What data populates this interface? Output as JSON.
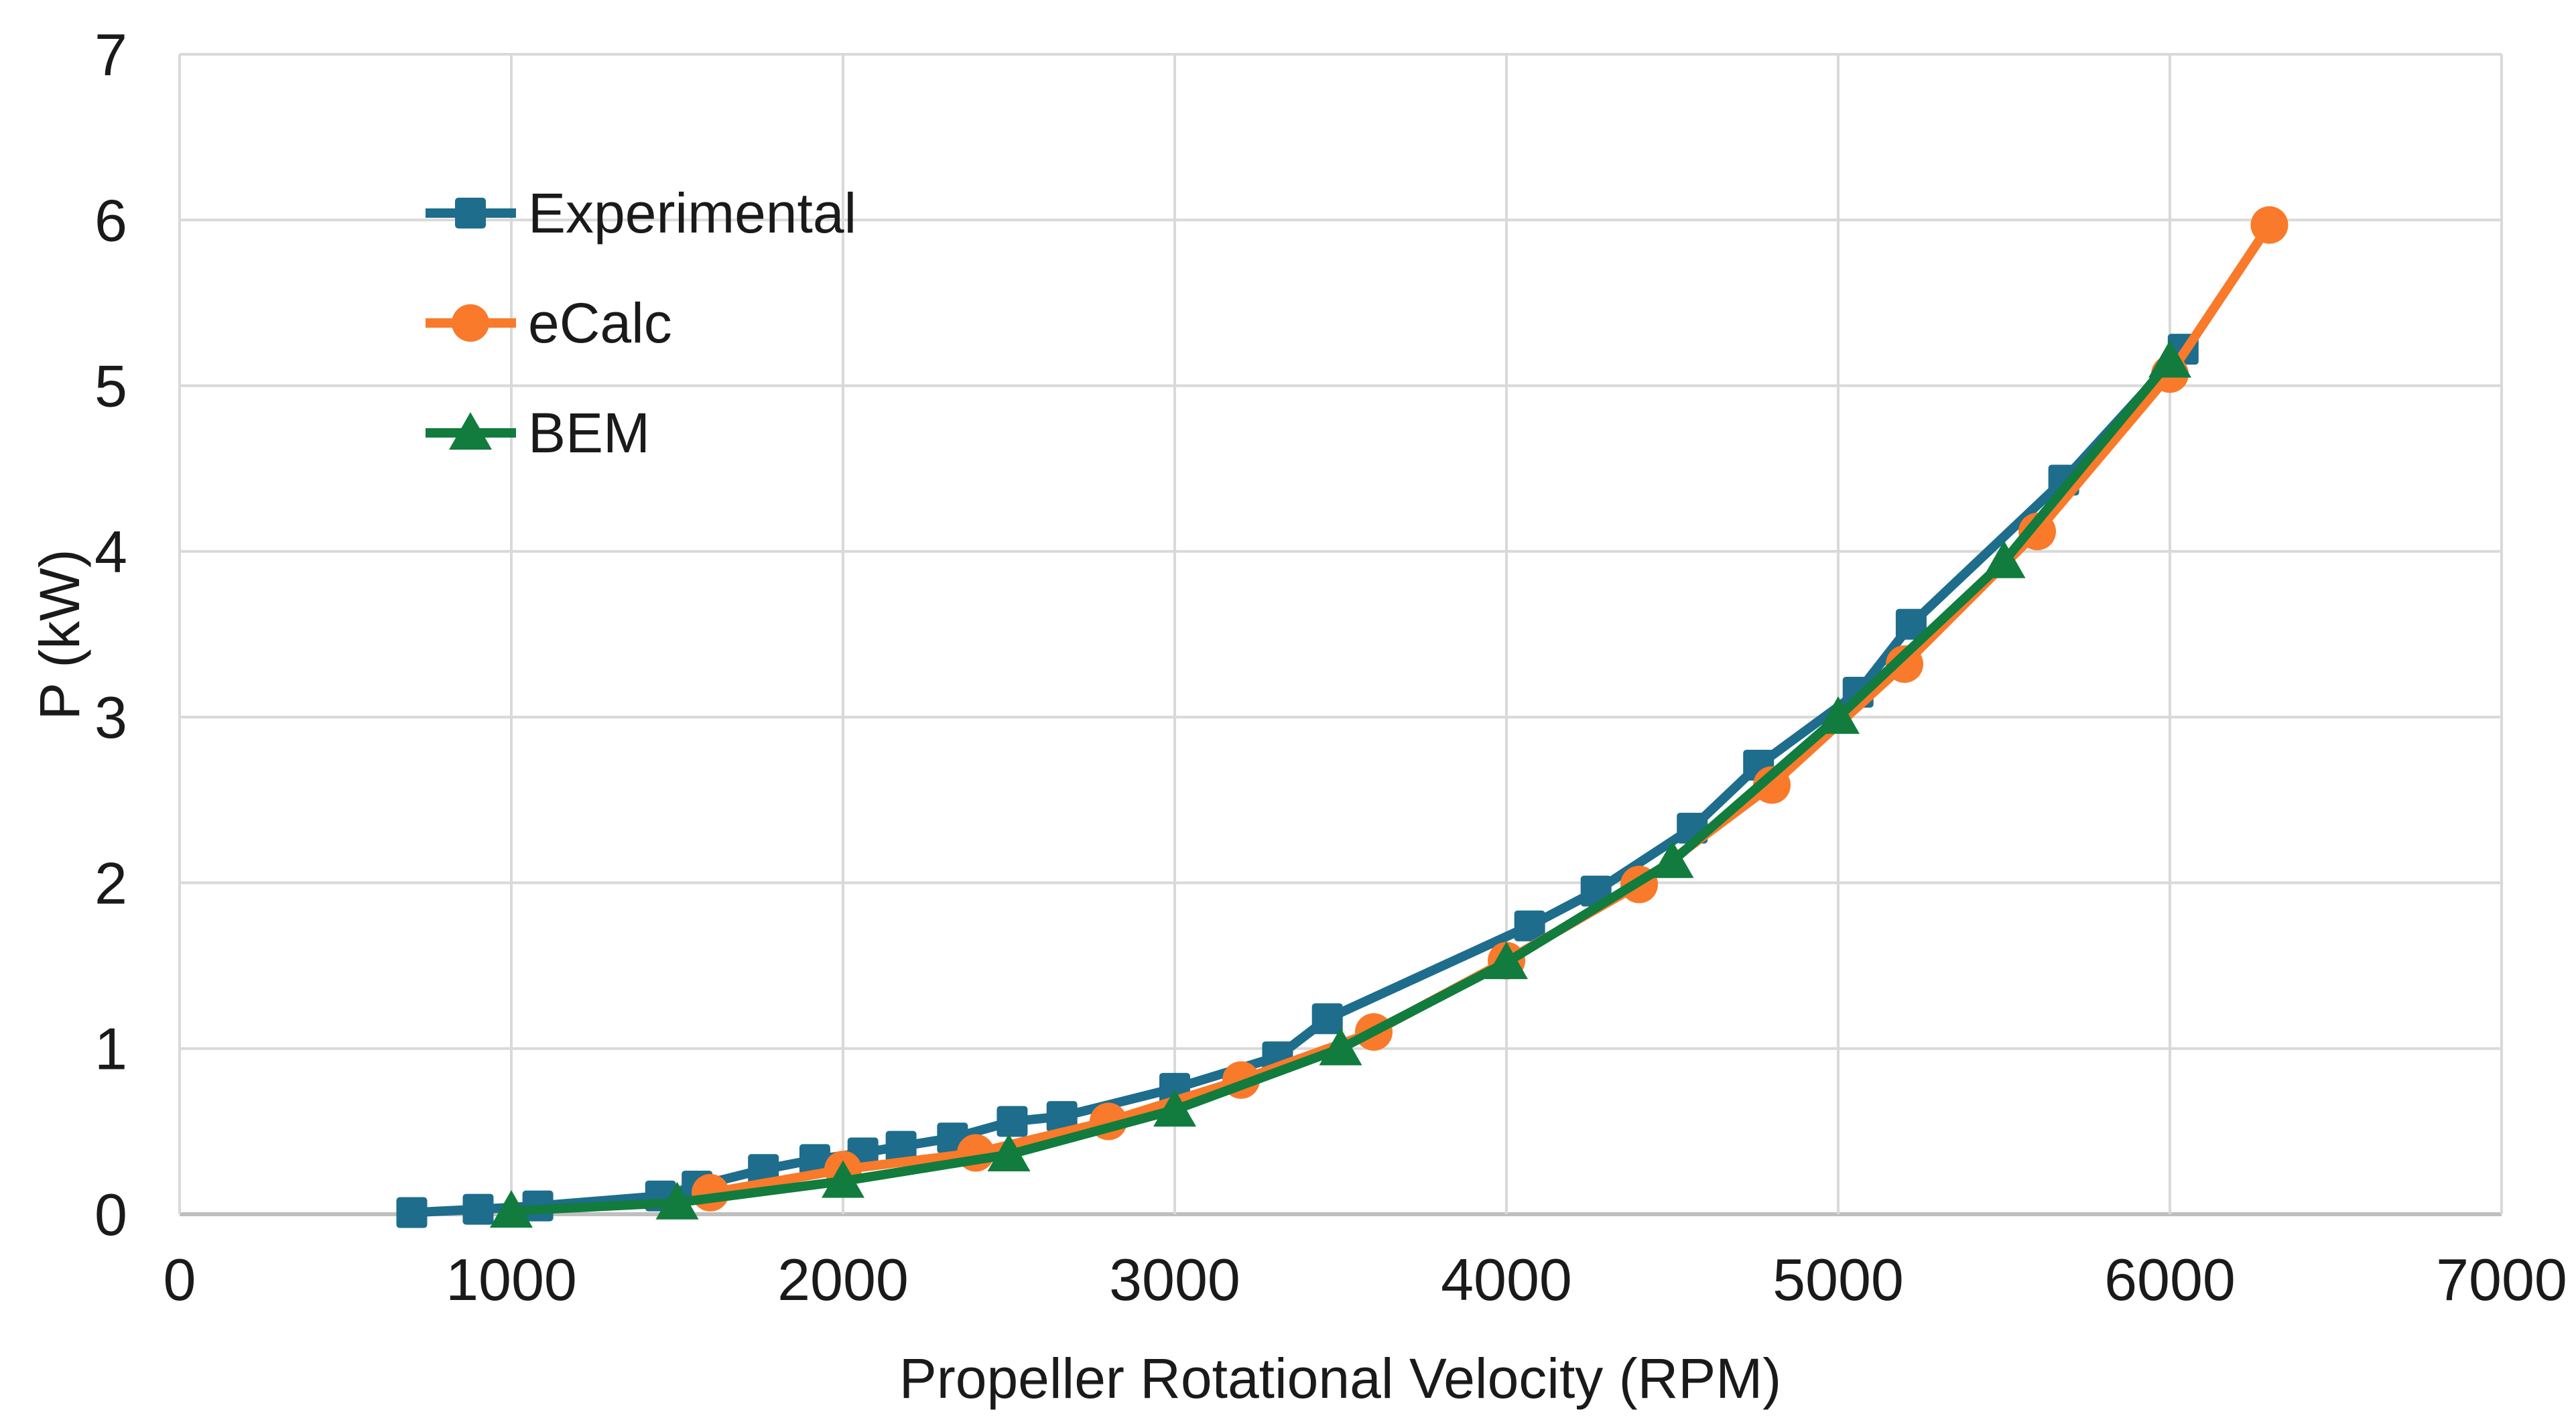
{
  "chart_data": {
    "type": "line",
    "title": "",
    "xlabel": "Propeller Rotational Velocity (RPM)",
    "ylabel": "P (kW)",
    "xlim": [
      0,
      7000
    ],
    "ylim": [
      0,
      7
    ],
    "grid": true,
    "legend_position": "upper-left-inside",
    "x_ticks": [
      0,
      1000,
      2000,
      3000,
      4000,
      5000,
      6000,
      7000
    ],
    "x_tick_labels": [
      "0",
      "1000",
      "2000",
      "3000",
      "4000",
      "5000",
      "6000",
      "7000"
    ],
    "y_ticks": [
      0,
      1,
      2,
      3,
      4,
      5,
      6,
      7
    ],
    "y_tick_labels": [
      "0",
      "1",
      "2",
      "3",
      "4",
      "5",
      "6",
      "7"
    ],
    "colors": {
      "experimental": "#1e6d8c",
      "ecalc": "#f87a2a",
      "bem": "#117c3d",
      "gridline": "#d9d9d9",
      "axis": "#bfbfbf",
      "text": "#1a1a1a"
    },
    "series": [
      {
        "name": "Experimental",
        "marker": "square",
        "color": "#1e6d8c",
        "x": [
          700,
          900,
          1080,
          1450,
          1560,
          1760,
          1915,
          2060,
          2175,
          2330,
          2510,
          2660,
          3000,
          3310,
          3460,
          4070,
          4270,
          4560,
          4760,
          5060,
          5220,
          5680,
          6040
        ],
        "y": [
          0.01,
          0.03,
          0.05,
          0.11,
          0.17,
          0.27,
          0.33,
          0.37,
          0.41,
          0.46,
          0.56,
          0.59,
          0.76,
          0.95,
          1.18,
          1.74,
          1.95,
          2.33,
          2.71,
          3.15,
          3.56,
          4.43,
          5.22
        ]
      },
      {
        "name": "eCalc",
        "marker": "circle",
        "color": "#f87a2a",
        "x": [
          1600,
          2000,
          2400,
          2800,
          3200,
          3600,
          4000,
          4400,
          4800,
          5200,
          5600,
          6000,
          6300
        ],
        "y": [
          0.13,
          0.27,
          0.37,
          0.56,
          0.81,
          1.1,
          1.53,
          1.99,
          2.59,
          3.32,
          4.12,
          5.07,
          5.97
        ]
      },
      {
        "name": "BEM",
        "marker": "triangle",
        "color": "#117c3d",
        "x": [
          1000,
          1500,
          2000,
          2500,
          3000,
          3500,
          4000,
          4500,
          5000,
          5500,
          6000
        ],
        "y": [
          0.02,
          0.07,
          0.2,
          0.36,
          0.63,
          1.0,
          1.52,
          2.13,
          3.0,
          3.94,
          5.15
        ]
      }
    ]
  }
}
